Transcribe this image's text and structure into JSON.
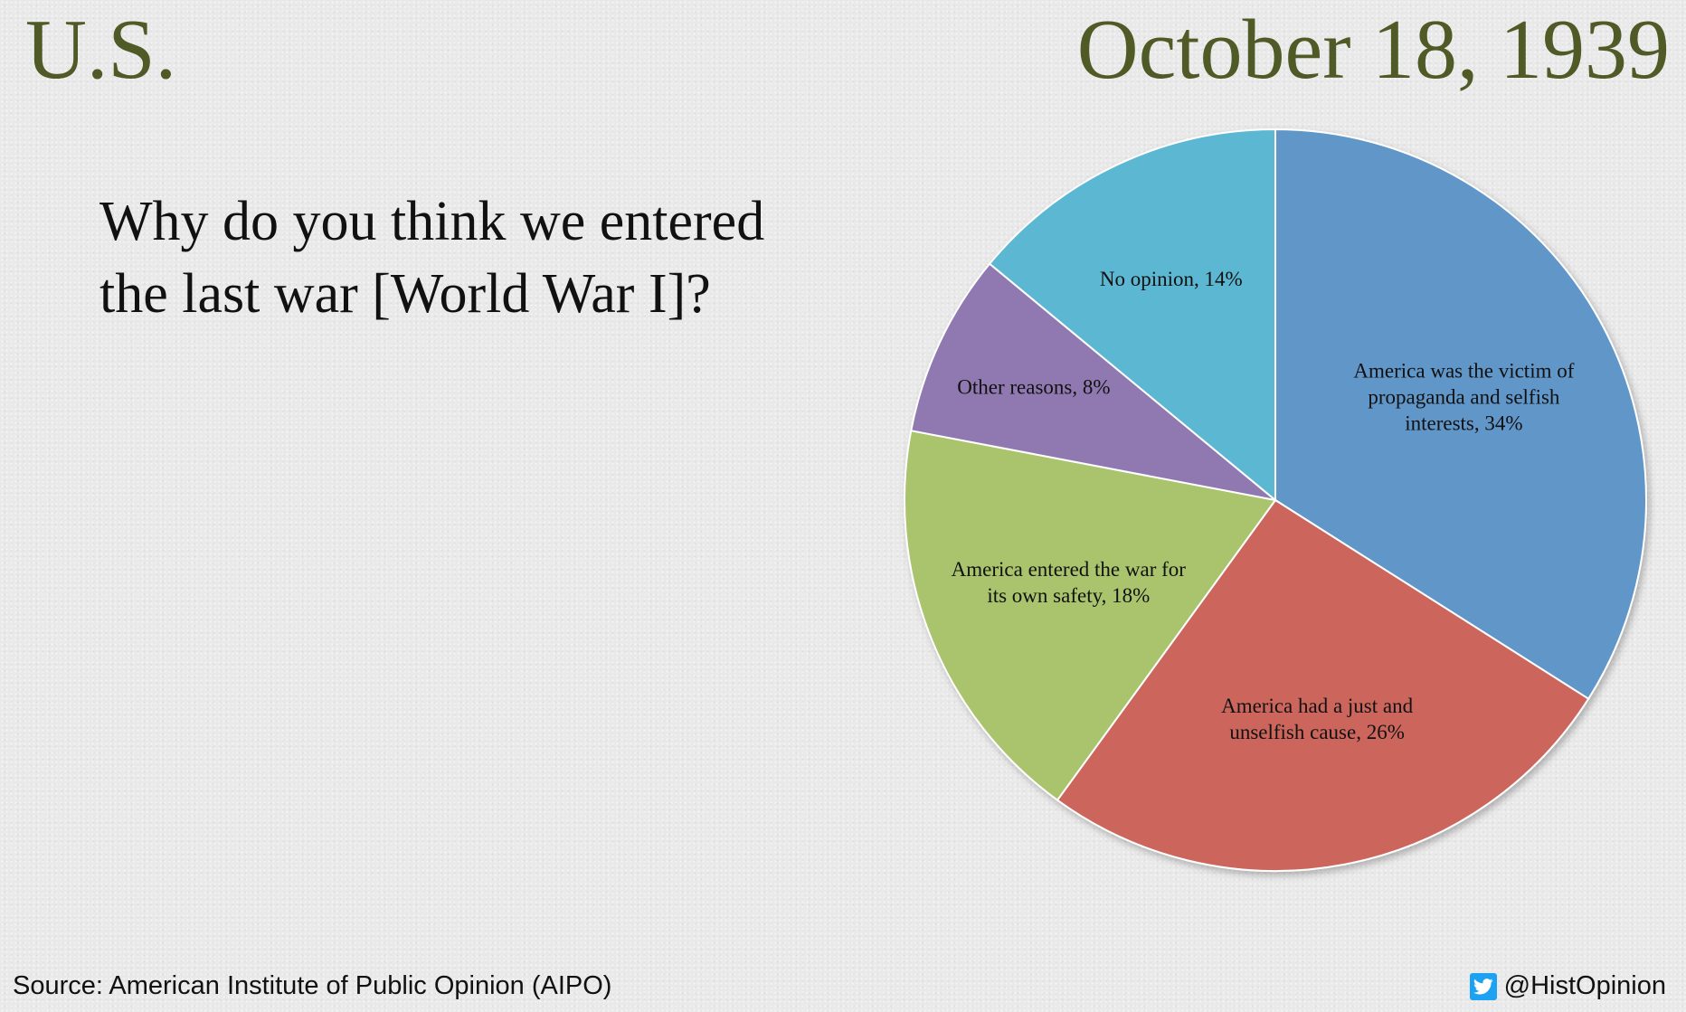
{
  "header": {
    "country": "U.S.",
    "date": "October 18, 1939"
  },
  "question": "Why do you think we entered the last war [World War I]?",
  "footer": {
    "source": "Source: American Institute of Public Opinion (AIPO)",
    "handle": "@HistOpinion",
    "handle_icon": "twitter-icon"
  },
  "chart_data": {
    "type": "pie",
    "title": "",
    "start": "12-o'clock",
    "direction": "clockwise",
    "slices": [
      {
        "lines": [
          "America was the victim of",
          "propaganda and selfish",
          "interests, 34%"
        ],
        "value": 34,
        "color": "#6096c8"
      },
      {
        "lines": [
          "America had a just and",
          "unselfish cause, 26%"
        ],
        "value": 26,
        "color": "#cc665c"
      },
      {
        "lines": [
          "America entered the war for",
          "its own safety, 18%"
        ],
        "value": 18,
        "color": "#a9c46c"
      },
      {
        "lines": [
          "Other reasons, 8%"
        ],
        "value": 8,
        "color": "#9079b0"
      },
      {
        "lines": [
          "No opinion, 14%"
        ],
        "value": 14,
        "color": "#5bb8d2"
      }
    ]
  }
}
